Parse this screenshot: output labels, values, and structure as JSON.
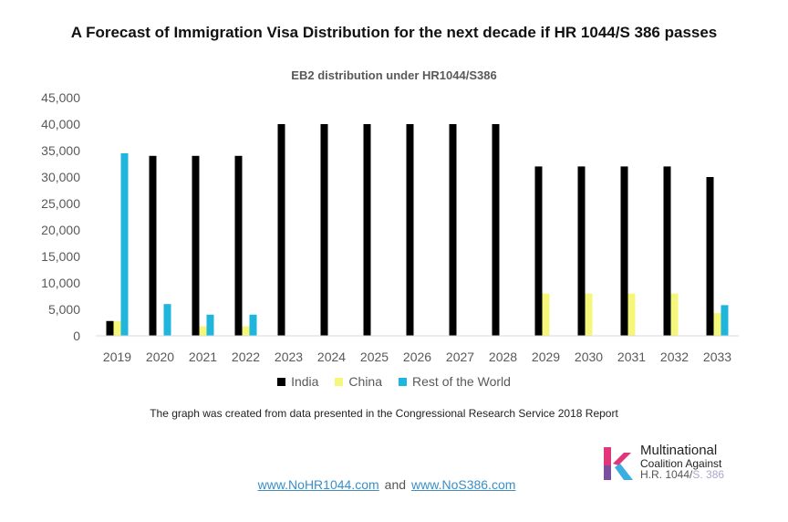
{
  "page_title": "A Forecast of Immigration Visa Distribution for the next decade if HR 1044/S 386 passes",
  "footnote": "The graph was created from data presented in the Congressional Research Service 2018 Report",
  "links": {
    "first": "www.NoHR1044.com",
    "connector": "and",
    "second": "www.NoS386.com"
  },
  "logo": {
    "line1": "Multinational",
    "line2": "Coalition Against",
    "line3_a": "H.R. 1044/",
    "line3_b": "S. 386",
    "colors": [
      "#e0367a",
      "#7b4fa0",
      "#3aaee0"
    ]
  },
  "chart_data": {
    "type": "bar",
    "title": "EB2 distribution under HR1044/S386",
    "xlabel": "",
    "ylabel": "",
    "ylim": [
      0,
      45000
    ],
    "yticks": [
      "0",
      "5,000",
      "10,000",
      "15,000",
      "20,000",
      "25,000",
      "30,000",
      "35,000",
      "40,000",
      "45,000"
    ],
    "grid": false,
    "legend_position": "bottom",
    "categories": [
      "2019",
      "2020",
      "2021",
      "2022",
      "2023",
      "2024",
      "2025",
      "2026",
      "2027",
      "2028",
      "2029",
      "2030",
      "2031",
      "2032",
      "2033"
    ],
    "series": [
      {
        "name": "India",
        "color": "#000000",
        "values": [
          2800,
          34000,
          34000,
          34000,
          40000,
          40000,
          40000,
          40000,
          40000,
          40000,
          32000,
          32000,
          32000,
          32000,
          30000
        ]
      },
      {
        "name": "China",
        "color": "#f5f77a",
        "values": [
          2800,
          0,
          1800,
          1800,
          0,
          0,
          0,
          0,
          0,
          0,
          8000,
          8000,
          8000,
          8000,
          4300
        ]
      },
      {
        "name": "Rest of the World",
        "color": "#1fb5dc",
        "values": [
          34500,
          6000,
          4000,
          4000,
          0,
          0,
          0,
          0,
          0,
          0,
          0,
          0,
          0,
          0,
          5800
        ]
      }
    ]
  }
}
